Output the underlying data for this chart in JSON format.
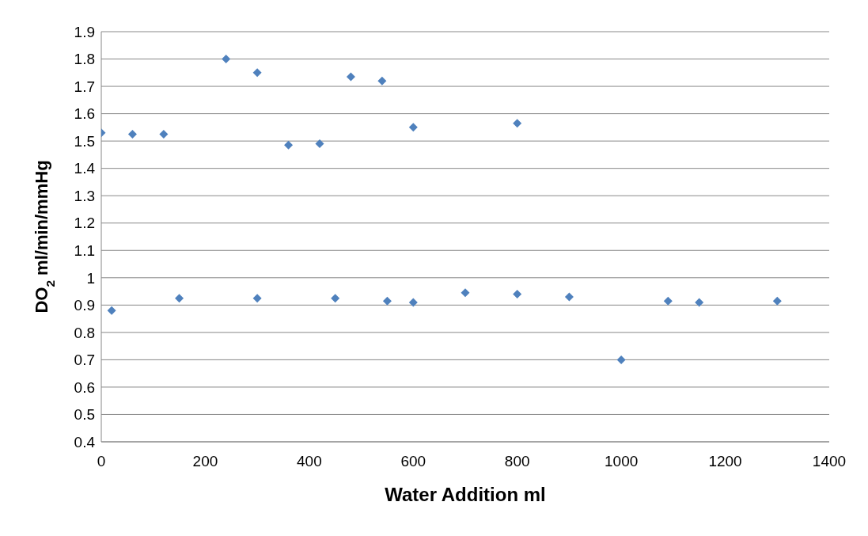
{
  "chart_data": {
    "type": "scatter",
    "xlabel": "Water Addition ml",
    "ylabel": "DO$_{2}$ ml/min/mmHg",
    "x": [
      0,
      60,
      120,
      240,
      300,
      360,
      420,
      480,
      540,
      600,
      800,
      20,
      150,
      300,
      450,
      550,
      600,
      700,
      800,
      900,
      1000,
      1090,
      1150,
      1300
    ],
    "values": [
      1.53,
      1.525,
      1.525,
      1.8,
      1.75,
      1.485,
      1.49,
      1.735,
      1.72,
      1.55,
      1.565,
      0.88,
      0.925,
      0.925,
      0.925,
      0.915,
      0.91,
      0.945,
      0.94,
      0.93,
      0.7,
      0.915,
      0.91,
      0.915
    ],
    "color": "#4f81bd",
    "marker": "diamond",
    "grid": "y",
    "xlim": [
      0,
      1400
    ],
    "xticks": [
      0,
      200,
      400,
      600,
      800,
      1000,
      1200,
      1400
    ],
    "ylim": [
      0.4,
      1.9
    ],
    "yticks": [
      0.4,
      0.5,
      0.6,
      0.7,
      0.8,
      0.9,
      1,
      1.1,
      1.2,
      1.3,
      1.4,
      1.5,
      1.6,
      1.7,
      1.8,
      1.9
    ]
  }
}
